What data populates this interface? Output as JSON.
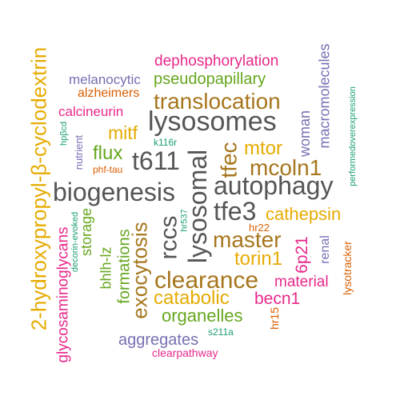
{
  "colors": {
    "green": "#1b9e77",
    "orange": "#d95f02",
    "purple": "#7570b3",
    "magenta": "#e7298a",
    "lime": "#66a61e",
    "gold": "#e6ab02",
    "brown": "#a6761d",
    "gray": "#555555"
  },
  "words": {
    "dephosphorylation": "dephosphorylation",
    "melanocytic": "melanocytic",
    "pseudopapillary": "pseudopapillary",
    "alzheimers": "alzheimers",
    "translocation": "translocation",
    "calcineurin": "calcineurin",
    "lysosomes": "lysosomes",
    "mitf": "mitf",
    "mtor": "mtor",
    "k116r": "k116r",
    "flux": "flux",
    "t611": "t611",
    "mcoln1": "mcoln1",
    "hpbcd": "hpβcd",
    "nutrient": "nutrient",
    "phf_tau": "phf-tau",
    "biogenesis": "biogenesis",
    "autophagy": "autophagy",
    "tfe3": "tfe3",
    "cathepsin": "cathepsin",
    "master": "master",
    "torin1": "torin1",
    "clearance": "clearance",
    "material": "material",
    "catabolic": "catabolic",
    "becn1": "becn1",
    "organelles": "organelles",
    "aggregates": "aggregates",
    "s211a": "s211a",
    "clearpathway": "clearpathway",
    "cyclodextrin": "2-hydroxypropyl-β-cyclodextrin",
    "glycosaminoglycans": "glycosaminoglycans",
    "decorin_evoked": "decorin-evoked",
    "storage": "storage",
    "bhlh_lz": "bhlh-lz",
    "formations": "formations",
    "exocytosis": "exocytosis",
    "rccs": "rccs",
    "hr537": "hr537",
    "lysosomal": "lysosomal",
    "tfec": "tfec",
    "woman": "woman",
    "macromolecules": "macromolecules",
    "performedoverexpression": "performedoverexpression",
    "hr22": "hr22",
    "sixp21": "6p21",
    "renal": "renal",
    "lysotracker": "lysotracker",
    "hr15": "hr15"
  }
}
